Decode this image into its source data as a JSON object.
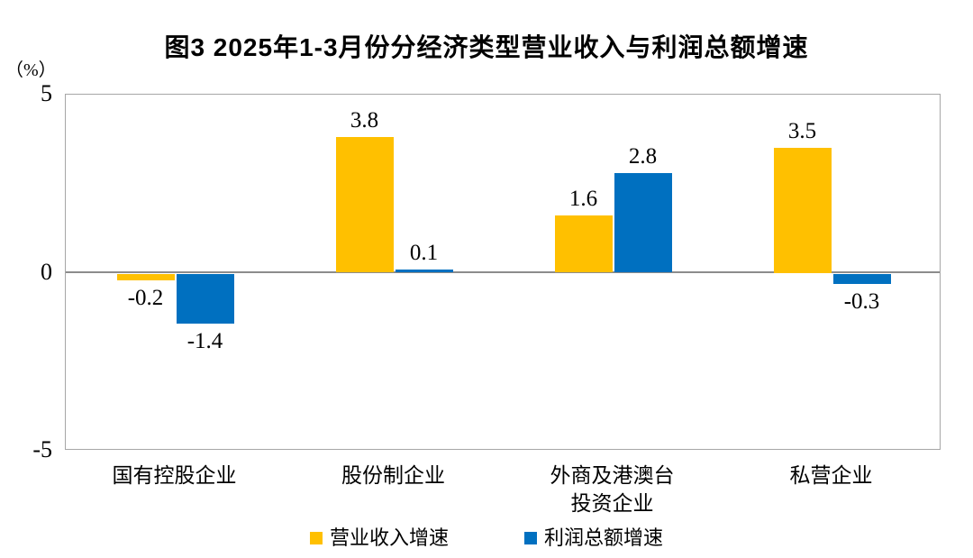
{
  "chart_data": {
    "type": "bar",
    "title": "图3  2025年1-3月份分经济类型营业收入与利润总额增速",
    "ylabel_unit": "（%）",
    "ylim": [
      -5,
      5
    ],
    "yticks": [
      5,
      0,
      -5
    ],
    "grid": false,
    "legend_position": "bottom",
    "categories": [
      "国有控股企业",
      "股份制企业",
      "外商及港澳台\n投资企业",
      "私营企业"
    ],
    "series": [
      {
        "name": "营业收入增速",
        "color": "#FFC000",
        "values": [
          -0.2,
          3.8,
          1.6,
          3.5
        ]
      },
      {
        "name": "利润总额增速",
        "color": "#0070C0",
        "values": [
          -1.4,
          0.1,
          2.8,
          -0.3
        ]
      }
    ]
  },
  "colors": {
    "background": "#ffffff",
    "plot_border": "#a6a6a6",
    "zero_line": "#8c8c8c",
    "text": "#000000"
  }
}
